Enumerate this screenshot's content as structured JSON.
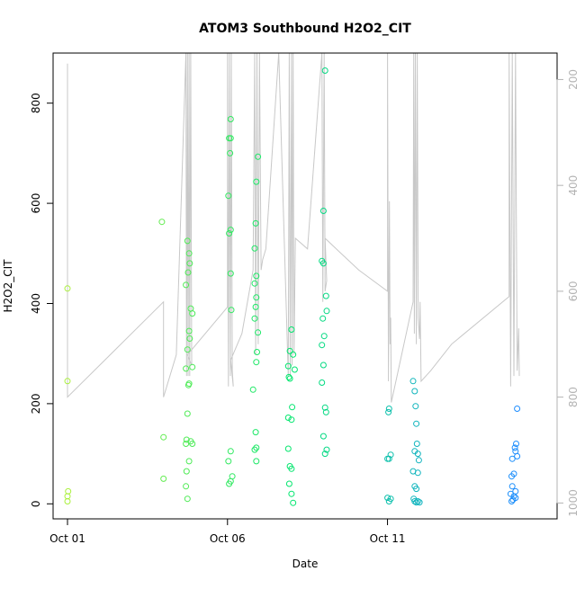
{
  "chart_data": {
    "type": "scatter",
    "title": "ATOM3 Southbound H2O2_CIT",
    "xlabel": "Date",
    "ylabel": "H2O2_CIT",
    "x_ticks": [
      "Oct 01",
      "Oct 06",
      "Oct 11"
    ],
    "x_tick_days": [
      1,
      6,
      11
    ],
    "xlim": [
      0.55,
      16.3
    ],
    "y_ticks": [
      0,
      200,
      400,
      600,
      800
    ],
    "ylim": [
      -30,
      900
    ],
    "y2_ticks": [
      200,
      400,
      600,
      800,
      1000
    ],
    "y2lim": [
      1030,
      150
    ],
    "y2_reversed": true,
    "grid": false,
    "legend": "none",
    "colors": {
      "altitude_line": "#c8c8c8",
      "gradient_start": "#aaf03c",
      "gradient_mid": "#00e66e",
      "gradient_end": "#1e8cff",
      "right_axis": "#b3b3b3"
    },
    "points": [
      [
        1.0,
        430
      ],
      [
        1.0,
        245
      ],
      [
        1.02,
        25
      ],
      [
        1.0,
        15
      ],
      [
        1.0,
        5
      ],
      [
        3.95,
        563
      ],
      [
        4.0,
        133
      ],
      [
        4.0,
        50
      ],
      [
        4.75,
        525
      ],
      [
        4.8,
        500
      ],
      [
        4.82,
        480
      ],
      [
        4.77,
        462
      ],
      [
        4.7,
        437
      ],
      [
        4.85,
        390
      ],
      [
        4.9,
        380
      ],
      [
        4.8,
        345
      ],
      [
        4.82,
        330
      ],
      [
        4.75,
        308
      ],
      [
        4.7,
        270
      ],
      [
        4.9,
        273
      ],
      [
        4.8,
        240
      ],
      [
        4.78,
        237
      ],
      [
        4.75,
        180
      ],
      [
        4.72,
        128
      ],
      [
        4.85,
        125
      ],
      [
        4.9,
        120
      ],
      [
        4.7,
        120
      ],
      [
        4.8,
        85
      ],
      [
        4.72,
        65
      ],
      [
        4.7,
        35
      ],
      [
        4.75,
        10
      ],
      [
        6.1,
        768
      ],
      [
        6.05,
        730
      ],
      [
        6.1,
        730
      ],
      [
        6.08,
        700
      ],
      [
        6.03,
        615
      ],
      [
        6.1,
        547
      ],
      [
        6.05,
        540
      ],
      [
        6.1,
        460
      ],
      [
        6.12,
        387
      ],
      [
        6.1,
        105
      ],
      [
        6.03,
        85
      ],
      [
        6.15,
        55
      ],
      [
        6.1,
        45
      ],
      [
        6.05,
        40
      ],
      [
        6.95,
        693
      ],
      [
        6.9,
        643
      ],
      [
        6.88,
        560
      ],
      [
        6.85,
        510
      ],
      [
        6.9,
        455
      ],
      [
        6.85,
        440
      ],
      [
        6.9,
        412
      ],
      [
        6.88,
        393
      ],
      [
        6.85,
        370
      ],
      [
        6.95,
        342
      ],
      [
        6.92,
        303
      ],
      [
        6.9,
        283
      ],
      [
        6.8,
        228
      ],
      [
        6.88,
        143
      ],
      [
        6.9,
        112
      ],
      [
        6.85,
        108
      ],
      [
        6.9,
        85
      ],
      [
        8.0,
        348
      ],
      [
        7.95,
        305
      ],
      [
        8.05,
        298
      ],
      [
        7.9,
        275
      ],
      [
        8.1,
        268
      ],
      [
        7.92,
        253
      ],
      [
        7.95,
        250
      ],
      [
        7.9,
        172
      ],
      [
        8.0,
        168
      ],
      [
        8.02,
        193
      ],
      [
        7.9,
        110
      ],
      [
        7.95,
        75
      ],
      [
        8.0,
        70
      ],
      [
        7.93,
        40
      ],
      [
        8.0,
        20
      ],
      [
        8.05,
        2
      ],
      [
        9.05,
        865
      ],
      [
        9.0,
        585
      ],
      [
        8.95,
        485
      ],
      [
        9.0,
        480
      ],
      [
        9.08,
        415
      ],
      [
        9.1,
        385
      ],
      [
        8.98,
        370
      ],
      [
        9.02,
        335
      ],
      [
        8.95,
        317
      ],
      [
        9.0,
        277
      ],
      [
        8.95,
        242
      ],
      [
        9.05,
        192
      ],
      [
        9.08,
        183
      ],
      [
        9.0,
        135
      ],
      [
        9.1,
        108
      ],
      [
        9.05,
        100
      ],
      [
        11.05,
        190
      ],
      [
        11.03,
        183
      ],
      [
        11.1,
        98
      ],
      [
        11.0,
        90
      ],
      [
        11.05,
        90
      ],
      [
        11.0,
        12
      ],
      [
        11.1,
        10
      ],
      [
        11.05,
        5
      ],
      [
        11.8,
        245
      ],
      [
        11.85,
        225
      ],
      [
        11.88,
        195
      ],
      [
        11.9,
        160
      ],
      [
        11.92,
        120
      ],
      [
        11.85,
        105
      ],
      [
        11.95,
        100
      ],
      [
        11.98,
        87
      ],
      [
        11.8,
        65
      ],
      [
        11.95,
        62
      ],
      [
        11.85,
        35
      ],
      [
        11.9,
        30
      ],
      [
        11.82,
        10
      ],
      [
        11.85,
        5
      ],
      [
        11.9,
        3
      ],
      [
        11.95,
        5
      ],
      [
        12.0,
        3
      ],
      [
        15.05,
        190
      ],
      [
        15.02,
        120
      ],
      [
        14.98,
        112
      ],
      [
        15.0,
        105
      ],
      [
        15.05,
        95
      ],
      [
        14.9,
        90
      ],
      [
        14.95,
        60
      ],
      [
        14.88,
        55
      ],
      [
        14.9,
        35
      ],
      [
        15.0,
        25
      ],
      [
        14.85,
        20
      ],
      [
        14.95,
        15
      ],
      [
        15.0,
        12
      ],
      [
        14.92,
        8
      ],
      [
        14.88,
        5
      ]
    ],
    "altitude_path": [
      [
        1.0,
        170
      ],
      [
        1.0,
        800
      ],
      [
        4.0,
        620
      ],
      [
        4.0,
        800
      ],
      [
        4.4,
        720
      ],
      [
        4.7,
        150
      ],
      [
        4.72,
        760
      ],
      [
        4.75,
        150
      ],
      [
        4.77,
        760
      ],
      [
        4.8,
        150
      ],
      [
        4.82,
        760
      ],
      [
        4.85,
        150
      ],
      [
        4.88,
        740
      ],
      [
        4.75,
        720
      ],
      [
        6.0,
        630
      ],
      [
        6.0,
        150
      ],
      [
        6.03,
        780
      ],
      [
        6.06,
        150
      ],
      [
        6.09,
        760
      ],
      [
        6.12,
        150
      ],
      [
        6.15,
        750
      ],
      [
        6.18,
        780
      ],
      [
        6.1,
        730
      ],
      [
        6.45,
        680
      ],
      [
        6.8,
        560
      ],
      [
        6.85,
        150
      ],
      [
        6.88,
        720
      ],
      [
        6.92,
        150
      ],
      [
        6.96,
        700
      ],
      [
        7.0,
        150
      ],
      [
        7.05,
        560
      ],
      [
        7.1,
        540
      ],
      [
        7.2,
        520
      ],
      [
        7.6,
        150
      ],
      [
        7.9,
        760
      ],
      [
        7.93,
        150
      ],
      [
        7.96,
        760
      ],
      [
        8.0,
        150
      ],
      [
        8.02,
        740
      ],
      [
        8.05,
        150
      ],
      [
        8.08,
        720
      ],
      [
        8.12,
        500
      ],
      [
        8.5,
        520
      ],
      [
        8.95,
        150
      ],
      [
        8.98,
        620
      ],
      [
        9.02,
        150
      ],
      [
        9.05,
        600
      ],
      [
        9.1,
        580
      ],
      [
        9.05,
        500
      ],
      [
        10.1,
        560
      ],
      [
        11.0,
        600
      ],
      [
        11.0,
        150
      ],
      [
        11.03,
        770
      ],
      [
        11.06,
        430
      ],
      [
        11.08,
        700
      ],
      [
        11.1,
        650
      ],
      [
        11.12,
        810
      ],
      [
        11.8,
        620
      ],
      [
        11.82,
        150
      ],
      [
        11.84,
        680
      ],
      [
        11.87,
        150
      ],
      [
        11.9,
        700
      ],
      [
        11.93,
        150
      ],
      [
        11.96,
        650
      ],
      [
        12.0,
        690
      ],
      [
        12.02,
        620
      ],
      [
        12.05,
        770
      ],
      [
        12.35,
        750
      ],
      [
        13.0,
        700
      ],
      [
        14.8,
        610
      ],
      [
        14.8,
        150
      ],
      [
        14.85,
        780
      ],
      [
        14.9,
        150
      ],
      [
        14.95,
        760
      ],
      [
        15.0,
        150
      ],
      [
        15.05,
        750
      ],
      [
        15.1,
        670
      ],
      [
        15.12,
        760
      ]
    ]
  }
}
